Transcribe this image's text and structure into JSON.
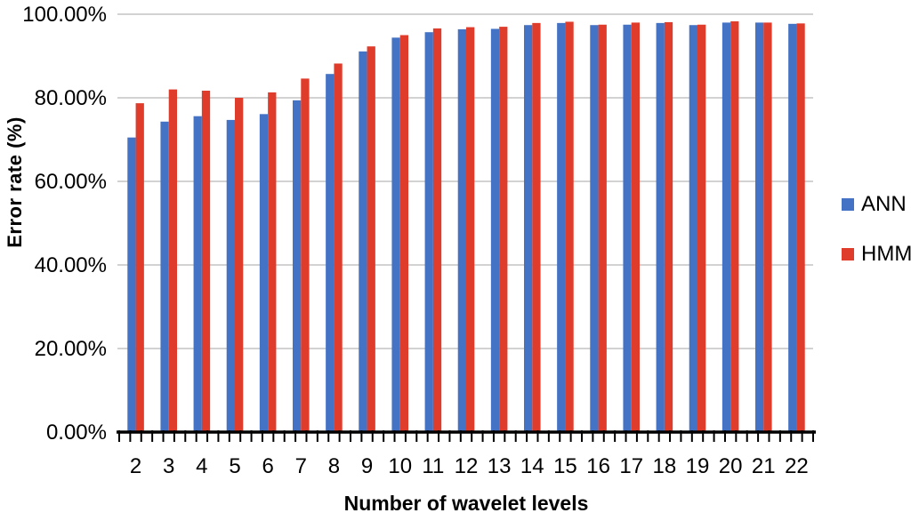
{
  "chart_data": {
    "type": "bar",
    "title": "",
    "xlabel": "Number of wavelet levels",
    "ylabel": "Error rate (%)",
    "categories": [
      "2",
      "3",
      "4",
      "5",
      "6",
      "7",
      "8",
      "9",
      "10",
      "11",
      "12",
      "13",
      "14",
      "15",
      "16",
      "17",
      "18",
      "19",
      "20",
      "21",
      "22"
    ],
    "series": [
      {
        "name": "ANN",
        "color": "#4472C4",
        "values": [
          70.5,
          74.3,
          75.6,
          74.7,
          76.1,
          79.4,
          85.7,
          91.1,
          94.4,
          95.7,
          96.4,
          96.5,
          97.4,
          97.9,
          97.4,
          97.5,
          97.9,
          97.4,
          98.0,
          98.0,
          97.7
        ]
      },
      {
        "name": "HMM",
        "color": "#E03C2B",
        "values": [
          78.7,
          82.0,
          81.7,
          80.0,
          81.3,
          84.6,
          88.2,
          92.3,
          95.0,
          96.6,
          96.9,
          97.0,
          97.9,
          98.2,
          97.5,
          98.0,
          98.1,
          97.5,
          98.3,
          98.0,
          97.8
        ]
      }
    ],
    "y_axis": {
      "tick_labels": [
        "0.00%",
        "20.00%",
        "40.00%",
        "60.00%",
        "80.00%",
        "100.00%"
      ],
      "tick_values": [
        0,
        20,
        40,
        60,
        80,
        100
      ],
      "range": [
        0,
        100
      ]
    },
    "grid": true,
    "legend_position": "right",
    "colors": {
      "gridline": "#C3C3C3",
      "axis": "#000000",
      "text": "#000000"
    }
  }
}
